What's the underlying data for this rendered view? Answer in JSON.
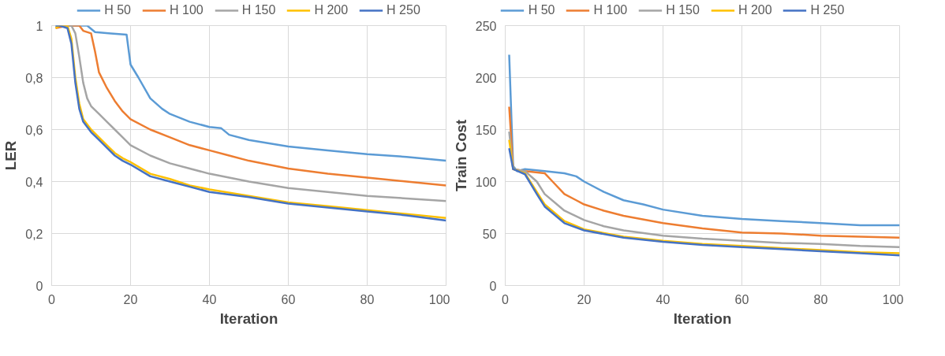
{
  "chart_data": [
    {
      "type": "line",
      "xlabel": "Iteration",
      "ylabel": "LER",
      "xlim": [
        0,
        100
      ],
      "xticks": [
        0,
        20,
        40,
        60,
        80,
        100
      ],
      "ylim": [
        0,
        1
      ],
      "yticks": [
        0,
        {
          "value": 0.2,
          "label": "0,2"
        },
        {
          "value": 0.4,
          "label": "0,4"
        },
        {
          "value": 0.6,
          "label": "0,6"
        },
        {
          "value": 0.8,
          "label": "0,8"
        },
        1
      ],
      "grid": true,
      "legend": "top",
      "marker": "none",
      "line_style": "solid",
      "series": [
        {
          "name": "H 50",
          "color": "#5b9bd5",
          "x": [
            1,
            5,
            9,
            11,
            15,
            19,
            20,
            22,
            25,
            28,
            30,
            35,
            40,
            43,
            45,
            50,
            60,
            70,
            80,
            90,
            100
          ],
          "values": [
            1,
            1,
            1,
            0.975,
            0.97,
            0.965,
            0.85,
            0.8,
            0.72,
            0.68,
            0.66,
            0.63,
            0.61,
            0.605,
            0.58,
            0.56,
            0.535,
            0.52,
            0.505,
            0.495,
            0.48
          ]
        },
        {
          "name": "H 100",
          "color": "#ed7d31",
          "x": [
            1,
            4,
            7,
            8,
            10,
            11,
            12,
            14,
            16,
            18,
            20,
            25,
            30,
            35,
            40,
            45,
            50,
            60,
            70,
            80,
            90,
            100
          ],
          "values": [
            0.99,
            1,
            1,
            0.98,
            0.97,
            0.9,
            0.82,
            0.76,
            0.71,
            0.67,
            0.64,
            0.6,
            0.57,
            0.54,
            0.52,
            0.5,
            0.48,
            0.45,
            0.43,
            0.415,
            0.4,
            0.385
          ]
        },
        {
          "name": "H 150",
          "color": "#a5a5a5",
          "x": [
            1,
            3,
            5,
            6,
            7,
            8,
            9,
            10,
            12,
            14,
            16,
            18,
            20,
            25,
            30,
            35,
            40,
            50,
            60,
            70,
            80,
            90,
            100
          ],
          "values": [
            1,
            1,
            1,
            0.97,
            0.88,
            0.78,
            0.72,
            0.69,
            0.66,
            0.63,
            0.6,
            0.57,
            0.54,
            0.5,
            0.47,
            0.45,
            0.43,
            0.4,
            0.375,
            0.36,
            0.345,
            0.335,
            0.325
          ]
        },
        {
          "name": "H 200",
          "color": "#ffc000",
          "x": [
            1,
            2,
            4,
            5,
            6,
            7,
            8,
            10,
            12,
            14,
            16,
            18,
            20,
            25,
            30,
            35,
            40,
            50,
            60,
            70,
            80,
            90,
            100
          ],
          "values": [
            0.99,
            1,
            1,
            0.95,
            0.8,
            0.7,
            0.64,
            0.6,
            0.57,
            0.54,
            0.51,
            0.49,
            0.475,
            0.43,
            0.41,
            0.385,
            0.37,
            0.345,
            0.32,
            0.305,
            0.29,
            0.275,
            0.26
          ]
        },
        {
          "name": "H 250",
          "color": "#4472c4",
          "x": [
            1,
            2,
            4,
            5,
            6,
            7,
            8,
            10,
            12,
            14,
            16,
            18,
            20,
            25,
            30,
            35,
            40,
            50,
            60,
            70,
            80,
            90,
            100
          ],
          "values": [
            1,
            1,
            0.99,
            0.93,
            0.78,
            0.68,
            0.63,
            0.59,
            0.56,
            0.53,
            0.5,
            0.48,
            0.465,
            0.42,
            0.4,
            0.38,
            0.36,
            0.34,
            0.315,
            0.3,
            0.285,
            0.27,
            0.25
          ]
        }
      ]
    },
    {
      "type": "line",
      "xlabel": "Iteration",
      "ylabel": "Train Cost",
      "xlim": [
        0,
        100
      ],
      "xticks": [
        0,
        20,
        40,
        60,
        80,
        100
      ],
      "ylim": [
        0,
        250
      ],
      "yticks": [
        0,
        50,
        100,
        150,
        200,
        250
      ],
      "grid": true,
      "legend": "top",
      "marker": "none",
      "line_style": "solid",
      "series": [
        {
          "name": "H 50",
          "color": "#5b9bd5",
          "x": [
            1,
            2,
            3,
            5,
            10,
            15,
            18,
            20,
            25,
            30,
            35,
            40,
            50,
            60,
            70,
            80,
            90,
            100
          ],
          "values": [
            222,
            115,
            110,
            112,
            110,
            108,
            105,
            100,
            90,
            82,
            78,
            73,
            67,
            64,
            62,
            60,
            58,
            58
          ]
        },
        {
          "name": "H 100",
          "color": "#ed7d31",
          "x": [
            1,
            2,
            5,
            10,
            12,
            15,
            18,
            20,
            25,
            30,
            40,
            50,
            60,
            70,
            80,
            90,
            100
          ],
          "values": [
            172,
            112,
            110,
            108,
            100,
            88,
            82,
            78,
            72,
            67,
            60,
            55,
            51,
            50,
            48,
            47,
            46
          ]
        },
        {
          "name": "H 150",
          "color": "#a5a5a5",
          "x": [
            1,
            2,
            5,
            8,
            10,
            15,
            20,
            25,
            30,
            40,
            50,
            60,
            70,
            80,
            90,
            100
          ],
          "values": [
            148,
            112,
            110,
            100,
            88,
            72,
            63,
            57,
            53,
            48,
            45,
            43,
            41,
            40,
            38,
            37
          ]
        },
        {
          "name": "H 200",
          "color": "#ffc000",
          "x": [
            1,
            2,
            5,
            8,
            10,
            15,
            20,
            30,
            40,
            50,
            60,
            70,
            80,
            90,
            100
          ],
          "values": [
            140,
            112,
            108,
            90,
            78,
            62,
            54,
            47,
            43,
            40,
            38,
            36,
            34,
            32,
            31
          ]
        },
        {
          "name": "H 250",
          "color": "#4472c4",
          "x": [
            1,
            2,
            5,
            8,
            10,
            15,
            20,
            30,
            40,
            50,
            60,
            70,
            80,
            90,
            100
          ],
          "values": [
            132,
            112,
            107,
            88,
            76,
            60,
            53,
            46,
            42,
            39,
            37,
            35,
            33,
            31,
            29
          ]
        }
      ]
    }
  ]
}
